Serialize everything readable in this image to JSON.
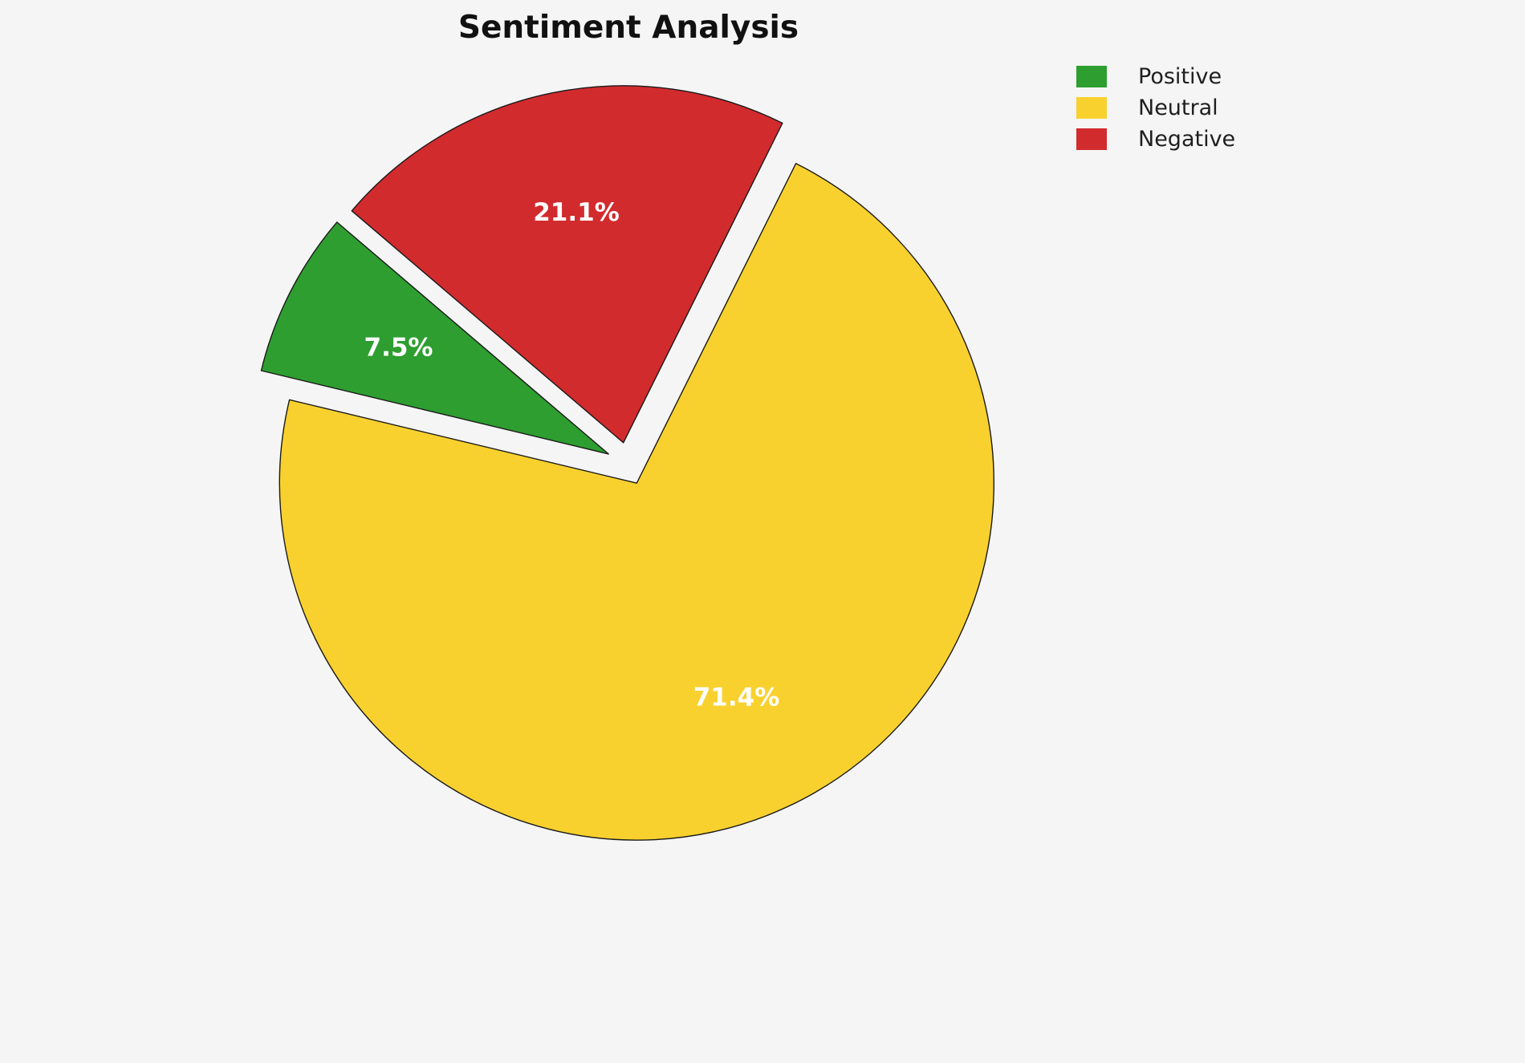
{
  "chart_data": {
    "type": "pie",
    "title": "Sentiment Analysis",
    "labels": [
      "Positive",
      "Neutral",
      "Negative"
    ],
    "values": [
      7.5,
      71.4,
      21.1
    ],
    "pct_labels": [
      "7.5%",
      "71.4%",
      "21.1%"
    ],
    "colors": [
      "#2e9e30",
      "#f8d12f",
      "#d22b2e"
    ],
    "background": "#f5f5f5",
    "edge_color": "#1a1a1a",
    "pct_label_color": "#ffffff",
    "legend_position": "upper right",
    "start_angle": 139.5,
    "direction": "counterclockwise",
    "explode": [
      0.06,
      0.06,
      0.06
    ]
  }
}
